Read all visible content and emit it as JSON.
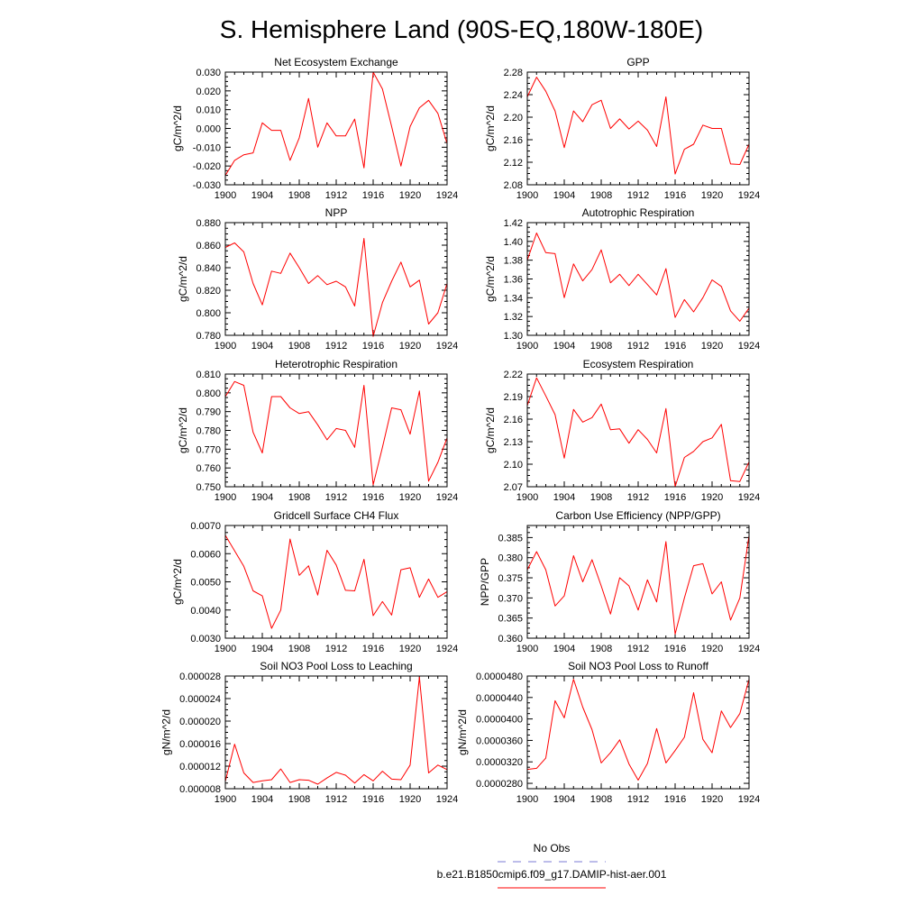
{
  "figure": {
    "title": "S. Hemisphere Land (90S-EQ,180W-180E)",
    "legend": [
      {
        "label": "No Obs",
        "color": "#7b7bd6",
        "style": "dashed"
      },
      {
        "label": "b.e21.B1850cmip6.f09_g17.DAMIP-hist-aer.001",
        "color": "#ff0000",
        "style": "solid"
      }
    ]
  },
  "chart_data": [
    {
      "type": "line",
      "title": "Net Ecosystem Exchange",
      "ylabel": "gC/m^2/d",
      "xlim": [
        1900,
        1924
      ],
      "ylim": [
        -0.03,
        0.03
      ],
      "xticks": [
        "1900",
        "1904",
        "1908",
        "1912",
        "1916",
        "1920",
        "1924"
      ],
      "yticks": [
        "-0.030",
        "-0.020",
        "-0.010",
        "0.000",
        "0.010",
        "0.020",
        "0.030"
      ],
      "series": [
        {
          "color": "#ff0000",
          "x": [
            1900,
            1901,
            1902,
            1903,
            1904,
            1905,
            1906,
            1907,
            1908,
            1909,
            1910,
            1911,
            1912,
            1913,
            1914,
            1915,
            1916,
            1917,
            1918,
            1919,
            1920,
            1921,
            1922,
            1923,
            1924
          ],
          "values": [
            -0.025,
            -0.017,
            -0.014,
            -0.013,
            0.003,
            -0.001,
            -0.001,
            -0.017,
            -0.005,
            0.016,
            -0.01,
            0.003,
            -0.004,
            -0.004,
            0.005,
            -0.021,
            0.03,
            0.021,
            0.001,
            -0.02,
            0.001,
            0.011,
            0.015,
            0.008,
            -0.008
          ]
        }
      ]
    },
    {
      "type": "line",
      "title": "GPP",
      "ylabel": "gC/m^2/d",
      "xlim": [
        1900,
        1924
      ],
      "ylim": [
        2.08,
        2.28
      ],
      "xticks": [
        "1900",
        "1904",
        "1908",
        "1912",
        "1916",
        "1920",
        "1924"
      ],
      "yticks": [
        "2.08",
        "2.12",
        "2.16",
        "2.20",
        "2.24",
        "2.28"
      ],
      "series": [
        {
          "color": "#ff0000",
          "x": [
            1900,
            1901,
            1902,
            1903,
            1904,
            1905,
            1906,
            1907,
            1908,
            1909,
            1910,
            1911,
            1912,
            1913,
            1914,
            1915,
            1916,
            1917,
            1918,
            1919,
            1920,
            1921,
            1922,
            1923,
            1924
          ],
          "values": [
            2.236,
            2.271,
            2.246,
            2.211,
            2.146,
            2.211,
            2.192,
            2.222,
            2.23,
            2.18,
            2.197,
            2.179,
            2.193,
            2.177,
            2.148,
            2.236,
            2.099,
            2.143,
            2.152,
            2.186,
            2.18,
            2.18,
            2.117,
            2.116,
            2.152
          ]
        }
      ]
    },
    {
      "type": "line",
      "title": "NPP",
      "ylabel": "gC/m^2/d",
      "xlim": [
        1900,
        1924
      ],
      "ylim": [
        0.78,
        0.88
      ],
      "xticks": [
        "1900",
        "1904",
        "1908",
        "1912",
        "1916",
        "1920",
        "1924"
      ],
      "yticks": [
        "0.780",
        "0.800",
        "0.820",
        "0.840",
        "0.860",
        "0.880"
      ],
      "series": [
        {
          "color": "#ff0000",
          "x": [
            1900,
            1901,
            1902,
            1903,
            1904,
            1905,
            1906,
            1907,
            1908,
            1909,
            1910,
            1911,
            1912,
            1913,
            1914,
            1915,
            1916,
            1917,
            1918,
            1919,
            1920,
            1921,
            1922,
            1923,
            1924
          ],
          "values": [
            0.858,
            0.862,
            0.854,
            0.826,
            0.807,
            0.837,
            0.835,
            0.853,
            0.84,
            0.826,
            0.833,
            0.825,
            0.828,
            0.823,
            0.806,
            0.866,
            0.779,
            0.809,
            0.828,
            0.845,
            0.823,
            0.829,
            0.79,
            0.8,
            0.826
          ]
        }
      ]
    },
    {
      "type": "line",
      "title": "Autotrophic Respiration",
      "ylabel": "gC/m^2/d",
      "xlim": [
        1900,
        1924
      ],
      "ylim": [
        1.3,
        1.42
      ],
      "xticks": [
        "1900",
        "1904",
        "1908",
        "1912",
        "1916",
        "1920",
        "1924"
      ],
      "yticks": [
        "1.30",
        "1.32",
        "1.34",
        "1.36",
        "1.38",
        "1.40",
        "1.42"
      ],
      "series": [
        {
          "color": "#ff0000",
          "x": [
            1900,
            1901,
            1902,
            1903,
            1904,
            1905,
            1906,
            1907,
            1908,
            1909,
            1910,
            1911,
            1912,
            1913,
            1914,
            1915,
            1916,
            1917,
            1918,
            1919,
            1920,
            1921,
            1922,
            1923,
            1924
          ],
          "values": [
            1.38,
            1.409,
            1.388,
            1.387,
            1.34,
            1.376,
            1.358,
            1.37,
            1.391,
            1.356,
            1.365,
            1.353,
            1.365,
            1.354,
            1.343,
            1.371,
            1.319,
            1.338,
            1.325,
            1.34,
            1.359,
            1.352,
            1.326,
            1.315,
            1.329
          ]
        }
      ]
    },
    {
      "type": "line",
      "title": "Heterotrophic Respiration",
      "ylabel": "gC/m^2/d",
      "xlim": [
        1900,
        1924
      ],
      "ylim": [
        0.75,
        0.81
      ],
      "xticks": [
        "1900",
        "1904",
        "1908",
        "1912",
        "1916",
        "1920",
        "1924"
      ],
      "yticks": [
        "0.750",
        "0.760",
        "0.770",
        "0.780",
        "0.790",
        "0.800",
        "0.810"
      ],
      "series": [
        {
          "color": "#ff0000",
          "x": [
            1900,
            1901,
            1902,
            1903,
            1904,
            1905,
            1906,
            1907,
            1908,
            1909,
            1910,
            1911,
            1912,
            1913,
            1914,
            1915,
            1916,
            1917,
            1918,
            1919,
            1920,
            1921,
            1922,
            1923,
            1924
          ],
          "values": [
            0.798,
            0.806,
            0.804,
            0.779,
            0.768,
            0.798,
            0.798,
            0.792,
            0.789,
            0.79,
            0.783,
            0.775,
            0.781,
            0.78,
            0.771,
            0.804,
            0.751,
            0.771,
            0.792,
            0.791,
            0.778,
            0.801,
            0.753,
            0.763,
            0.776
          ]
        }
      ]
    },
    {
      "type": "line",
      "title": "Ecosystem Respiration",
      "ylabel": "gC/m^2/d",
      "xlim": [
        1900,
        1924
      ],
      "ylim": [
        2.07,
        2.22
      ],
      "xticks": [
        "1900",
        "1904",
        "1908",
        "1912",
        "1916",
        "1920",
        "1924"
      ],
      "yticks": [
        "2.07",
        "2.10",
        "2.13",
        "2.16",
        "2.19",
        "2.22"
      ],
      "series": [
        {
          "color": "#ff0000",
          "x": [
            1900,
            1901,
            1902,
            1903,
            1904,
            1905,
            1906,
            1907,
            1908,
            1909,
            1910,
            1911,
            1912,
            1913,
            1914,
            1915,
            1916,
            1917,
            1918,
            1919,
            1920,
            1921,
            1922,
            1923,
            1924
          ],
          "values": [
            2.178,
            2.215,
            2.191,
            2.166,
            2.108,
            2.173,
            2.156,
            2.162,
            2.18,
            2.146,
            2.147,
            2.128,
            2.146,
            2.133,
            2.115,
            2.174,
            2.07,
            2.109,
            2.117,
            2.13,
            2.135,
            2.153,
            2.078,
            2.077,
            2.103
          ]
        }
      ]
    },
    {
      "type": "line",
      "title": "Gridcell Surface CH4 Flux",
      "ylabel": "gC/m^2/d",
      "xlim": [
        1900,
        1924
      ],
      "ylim": [
        0.003,
        0.007
      ],
      "xticks": [
        "1900",
        "1904",
        "1908",
        "1912",
        "1916",
        "1920",
        "1924"
      ],
      "yticks": [
        "0.0030",
        "0.0040",
        "0.0050",
        "0.0060",
        "0.0070"
      ],
      "series": [
        {
          "color": "#ff0000",
          "x": [
            1900,
            1901,
            1902,
            1903,
            1904,
            1905,
            1906,
            1907,
            1908,
            1909,
            1910,
            1911,
            1912,
            1913,
            1914,
            1915,
            1916,
            1917,
            1918,
            1919,
            1920,
            1921,
            1922,
            1923,
            1924
          ],
          "values": [
            0.00665,
            0.0061,
            0.00555,
            0.00468,
            0.0045,
            0.00335,
            0.004,
            0.00652,
            0.00523,
            0.00557,
            0.00453,
            0.00612,
            0.0056,
            0.0047,
            0.00468,
            0.0058,
            0.0038,
            0.0043,
            0.00382,
            0.00543,
            0.0055,
            0.00445,
            0.0051,
            0.00445,
            0.00465
          ]
        }
      ]
    },
    {
      "type": "line",
      "title": "Carbon Use Efficiency (NPP/GPP)",
      "ylabel": "NPP/GPP",
      "xlim": [
        1900,
        1924
      ],
      "ylim": [
        0.36,
        0.388
      ],
      "xticks": [
        "1900",
        "1904",
        "1908",
        "1912",
        "1916",
        "1920",
        "1924"
      ],
      "yticks": [
        "0.360",
        "0.365",
        "0.370",
        "0.375",
        "0.380",
        "0.385"
      ],
      "series": [
        {
          "color": "#ff0000",
          "x": [
            1900,
            1901,
            1902,
            1903,
            1904,
            1905,
            1906,
            1907,
            1908,
            1909,
            1910,
            1911,
            1912,
            1913,
            1914,
            1915,
            1916,
            1917,
            1918,
            1919,
            1920,
            1921,
            1922,
            1923,
            1924
          ],
          "values": [
            0.377,
            0.3815,
            0.377,
            0.368,
            0.3705,
            0.3805,
            0.374,
            0.3795,
            0.373,
            0.366,
            0.375,
            0.373,
            0.367,
            0.3745,
            0.369,
            0.384,
            0.361,
            0.37,
            0.378,
            0.3785,
            0.371,
            0.374,
            0.3645,
            0.37,
            0.3855
          ]
        }
      ]
    },
    {
      "type": "line",
      "title": "Soil NO3 Pool Loss to Leaching",
      "ylabel": "gN/m^2/d",
      "xlim": [
        1900,
        1924
      ],
      "ylim": [
        8e-06,
        2.8e-05
      ],
      "xticks": [
        "1900",
        "1904",
        "1908",
        "1912",
        "1916",
        "1920",
        "1924"
      ],
      "yticks": [
        "0.000008",
        "0.000012",
        "0.000016",
        "0.000020",
        "0.000024",
        "0.000028"
      ],
      "series": [
        {
          "color": "#ff0000",
          "x": [
            1900,
            1901,
            1902,
            1903,
            1904,
            1905,
            1906,
            1907,
            1908,
            1909,
            1910,
            1911,
            1912,
            1913,
            1914,
            1915,
            1916,
            1917,
            1918,
            1919,
            1920,
            1921,
            1922,
            1923,
            1924
          ],
          "values": [
            9.3e-06,
            1.59e-05,
            1.08e-05,
            9.1e-06,
            9.4e-06,
            9.6e-06,
            1.15e-05,
            9.1e-06,
            9.6e-06,
            9.5e-06,
            8.8e-06,
            9.9e-06,
            1.09e-05,
            1.04e-05,
            9e-06,
            1.05e-05,
            9.4e-06,
            1.11e-05,
            9.7e-06,
            9.6e-06,
            1.22e-05,
            2.78e-05,
            1.08e-05,
            1.22e-05,
            1.14e-05
          ]
        }
      ]
    },
    {
      "type": "line",
      "title": "Soil NO3 Pool Loss to Runoff",
      "ylabel": "gN/m^2/d",
      "xlim": [
        1900,
        1924
      ],
      "ylim": [
        2.7e-05,
        4.8e-05
      ],
      "xticks": [
        "1900",
        "1904",
        "1908",
        "1912",
        "1916",
        "1920",
        "1924"
      ],
      "yticks": [
        "0.0000280",
        "0.0000320",
        "0.0000360",
        "0.0000400",
        "0.0000440",
        "0.0000480"
      ],
      "series": [
        {
          "color": "#ff0000",
          "x": [
            1900,
            1901,
            1902,
            1903,
            1904,
            1905,
            1906,
            1907,
            1908,
            1909,
            1910,
            1911,
            1912,
            1913,
            1914,
            1915,
            1916,
            1917,
            1918,
            1919,
            1920,
            1921,
            1922,
            1923,
            1924
          ],
          "values": [
            3.06e-05,
            3.08e-05,
            3.27e-05,
            4.34e-05,
            4.02e-05,
            4.74e-05,
            4.22e-05,
            3.8e-05,
            3.18e-05,
            3.37e-05,
            3.61e-05,
            3.16e-05,
            2.86e-05,
            3.17e-05,
            3.82e-05,
            3.18e-05,
            3.41e-05,
            3.66e-05,
            4.49e-05,
            3.62e-05,
            3.37e-05,
            4.15e-05,
            3.84e-05,
            4.1e-05,
            4.74e-05
          ]
        }
      ]
    }
  ]
}
